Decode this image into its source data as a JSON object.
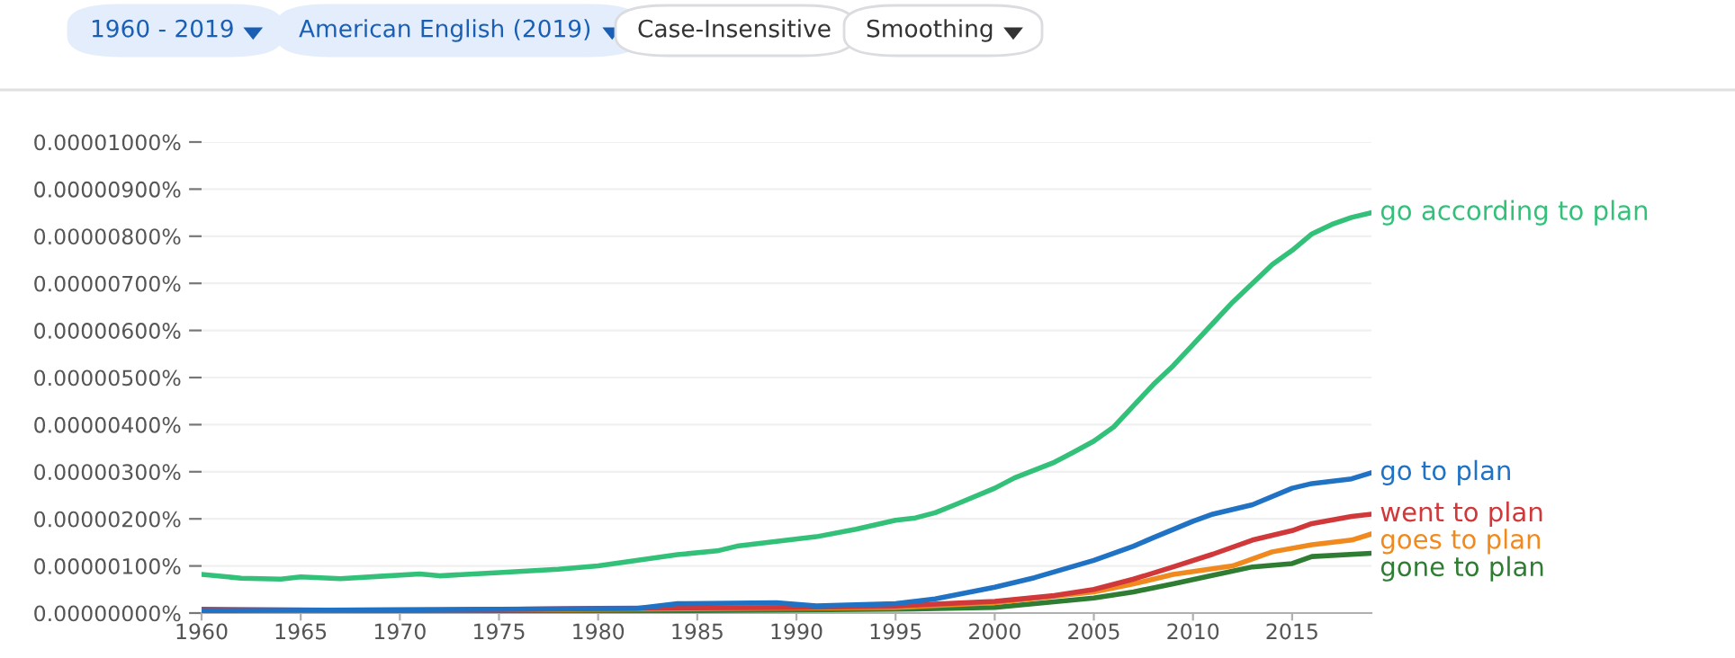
{
  "chart_data": {
    "type": "line",
    "annotations": [
      "1960 - 2019",
      "American English (2019)",
      "Case-Insensitive",
      "Smoothing"
    ],
    "xlim": [
      1960,
      2019
    ],
    "xticks": [
      1960,
      1965,
      1970,
      1975,
      1980,
      1985,
      1990,
      1995,
      2000,
      2005,
      2010,
      2015
    ],
    "ylim": [
      0,
      1e-05
    ],
    "yticks": [
      {
        "value": 0,
        "label": "0.00000000%"
      },
      {
        "value": 1e-06,
        "label": "0.00000100%"
      },
      {
        "value": 2e-06,
        "label": "0.00000200%"
      },
      {
        "value": 3e-06,
        "label": "0.00000300%"
      },
      {
        "value": 4e-06,
        "label": "0.00000400%"
      },
      {
        "value": 5e-06,
        "label": "0.00000500%"
      },
      {
        "value": 6e-06,
        "label": "0.00000600%"
      },
      {
        "value": 7e-06,
        "label": "0.00000700%"
      },
      {
        "value": 8e-06,
        "label": "0.00000800%"
      },
      {
        "value": 9e-06,
        "label": "0.00000900%"
      },
      {
        "value": 1e-05,
        "label": "0.00001000%"
      }
    ],
    "grid": "y",
    "legend": false,
    "marker": "none",
    "line_style": "solid",
    "series": [
      {
        "name": "go according to plan",
        "color": "#33c17a",
        "x": [
          1960,
          1962,
          1964,
          1965,
          1967,
          1969,
          1971,
          1972,
          1975,
          1978,
          1980,
          1982,
          1984,
          1986,
          1987,
          1989,
          1991,
          1993,
          1995,
          1996,
          1997,
          1998,
          2000,
          2001,
          2003,
          2004,
          2005,
          2006,
          2007,
          2008,
          2009,
          2010,
          2011,
          2012,
          2013,
          2014,
          2015,
          2016,
          2017,
          2018,
          2019
        ],
        "values": [
          8.2e-07,
          7.4e-07,
          7.2e-07,
          7.7e-07,
          7.3e-07,
          7.8e-07,
          8.3e-07,
          7.9e-07,
          8.6e-07,
          9.3e-07,
          1e-06,
          1.12e-06,
          1.24e-06,
          1.32e-06,
          1.42e-06,
          1.52e-06,
          1.62e-06,
          1.78e-06,
          1.97e-06,
          2.02e-06,
          2.13e-06,
          2.3e-06,
          2.65e-06,
          2.87e-06,
          3.2e-06,
          3.42e-06,
          3.65e-06,
          3.95e-06,
          4.4e-06,
          4.85e-06,
          5.25e-06,
          5.7e-06,
          6.15e-06,
          6.6e-06,
          7e-06,
          7.4e-06,
          7.7e-06,
          8.05e-06,
          8.25e-06,
          8.4e-06,
          8.5e-06
        ]
      },
      {
        "name": "go to plan",
        "color": "#1f72c4",
        "x": [
          1960,
          1975,
          1982,
          1984,
          1989,
          1991,
          1995,
          1997,
          2000,
          2002,
          2005,
          2007,
          2008,
          2010,
          2011,
          2013,
          2015,
          2016,
          2018,
          2019
        ],
        "values": [
          5e-08,
          8e-08,
          1e-07,
          2e-07,
          2.2e-07,
          1.5e-07,
          2e-07,
          3e-07,
          5.5e-07,
          7.5e-07,
          1.12e-06,
          1.42e-06,
          1.6e-06,
          1.95e-06,
          2.1e-06,
          2.3e-06,
          2.65e-06,
          2.75e-06,
          2.85e-06,
          2.98e-06
        ]
      },
      {
        "name": "went to plan",
        "color": "#d0383a",
        "x": [
          1960,
          1970,
          1980,
          1990,
          1995,
          2000,
          2003,
          2005,
          2007,
          2009,
          2011,
          2013,
          2015,
          2016,
          2018,
          2019
        ],
        "values": [
          8e-08,
          5e-08,
          1e-07,
          1.2e-07,
          1.5e-07,
          2.5e-07,
          3.7e-07,
          5e-07,
          7.2e-07,
          9.8e-07,
          1.25e-06,
          1.55e-06,
          1.75e-06,
          1.9e-06,
          2.05e-06,
          2.1e-06
        ]
      },
      {
        "name": "goes to plan",
        "color": "#f08a1f",
        "x": [
          1960,
          1980,
          1995,
          2000,
          2005,
          2007,
          2009,
          2012,
          2014,
          2016,
          2018,
          2019
        ],
        "values": [
          5e-08,
          8e-08,
          1.2e-07,
          2.2e-07,
          4.5e-07,
          6.2e-07,
          8.2e-07,
          1e-06,
          1.3e-06,
          1.45e-06,
          1.55e-06,
          1.68e-06
        ]
      },
      {
        "name": "gone to plan",
        "color": "#2e7d32",
        "x": [
          1960,
          1980,
          1995,
          2000,
          2005,
          2007,
          2009,
          2011,
          2013,
          2015,
          2016,
          2019
        ],
        "values": [
          2e-08,
          4e-08,
          8e-08,
          1.2e-07,
          3.2e-07,
          4.5e-07,
          6.2e-07,
          8e-07,
          9.8e-07,
          1.05e-06,
          1.2e-06,
          1.27e-06
        ]
      }
    ]
  }
}
